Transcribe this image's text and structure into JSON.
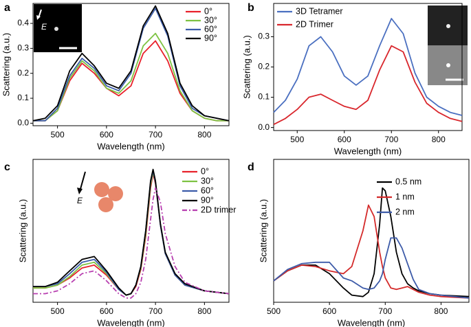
{
  "chart_data": [
    {
      "type": "line",
      "panel": "a",
      "xlabel": "Wavelength (nm)",
      "ylabel": "Scattering (a.u.)",
      "inset_label": "E",
      "x": [
        450,
        475,
        500,
        525,
        550,
        575,
        600,
        625,
        650,
        675,
        700,
        725,
        750,
        775,
        800,
        825,
        850
      ],
      "xlim": [
        450,
        850
      ],
      "xticks": [
        500,
        600,
        700,
        800
      ],
      "ylim": [
        -0.01,
        0.48
      ],
      "yticks": [
        {
          "value": 0,
          "label": "0.0"
        },
        0.1,
        0.2,
        0.3,
        0.4
      ],
      "legend": "upper right",
      "series": [
        {
          "name": "0°",
          "color": "#e8202a",
          "values": [
            0.01,
            0.01,
            0.05,
            0.17,
            0.24,
            0.2,
            0.14,
            0.11,
            0.15,
            0.28,
            0.33,
            0.25,
            0.12,
            0.05,
            0.02,
            0.01,
            0.01
          ]
        },
        {
          "name": "30°",
          "color": "#7dc242",
          "values": [
            0.01,
            0.01,
            0.05,
            0.18,
            0.25,
            0.21,
            0.14,
            0.12,
            0.17,
            0.31,
            0.36,
            0.28,
            0.13,
            0.05,
            0.02,
            0.01,
            0.01
          ]
        },
        {
          "name": "60°",
          "color": "#3b5ba9",
          "values": [
            0.01,
            0.01,
            0.06,
            0.19,
            0.26,
            0.22,
            0.15,
            0.13,
            0.2,
            0.38,
            0.46,
            0.35,
            0.15,
            0.06,
            0.03,
            0.02,
            0.01
          ]
        },
        {
          "name": "90°",
          "color": "#000000",
          "values": [
            0.01,
            0.02,
            0.07,
            0.21,
            0.28,
            0.23,
            0.16,
            0.14,
            0.21,
            0.39,
            0.47,
            0.36,
            0.16,
            0.07,
            0.03,
            0.02,
            0.01
          ]
        }
      ]
    },
    {
      "type": "line",
      "panel": "b",
      "xlabel": "Wavelength (nm)",
      "ylabel": "Scattering (a.u.)",
      "x": [
        450,
        475,
        500,
        525,
        550,
        575,
        600,
        625,
        650,
        675,
        700,
        725,
        750,
        775,
        800,
        825,
        850
      ],
      "xlim": [
        450,
        850
      ],
      "xticks": [
        500,
        600,
        700,
        800
      ],
      "ylim": [
        -0.01,
        0.41
      ],
      "yticks": [
        {
          "value": 0,
          "label": "0.0"
        },
        0.1,
        0.2,
        0.3
      ],
      "legend": "upper left",
      "series": [
        {
          "name": "3D Tetramer",
          "color": "#4a6fc0",
          "values": [
            0.05,
            0.09,
            0.16,
            0.27,
            0.3,
            0.25,
            0.17,
            0.14,
            0.17,
            0.27,
            0.36,
            0.31,
            0.18,
            0.1,
            0.07,
            0.05,
            0.04
          ]
        },
        {
          "name": "2D Trimer",
          "color": "#d9262c",
          "values": [
            0.01,
            0.03,
            0.06,
            0.1,
            0.11,
            0.09,
            0.07,
            0.06,
            0.09,
            0.19,
            0.27,
            0.25,
            0.15,
            0.08,
            0.05,
            0.03,
            0.02
          ]
        }
      ]
    },
    {
      "type": "line",
      "panel": "c",
      "xlabel": "Wavelength (nm)",
      "ylabel": "Scattering (a.u.)",
      "inset_label": "E",
      "x": [
        450,
        475,
        500,
        525,
        550,
        575,
        600,
        625,
        640,
        650,
        660,
        670,
        680,
        690,
        695,
        700,
        710,
        720,
        740,
        760,
        800,
        850
      ],
      "xlim": [
        450,
        850
      ],
      "xticks": [
        500,
        600,
        700,
        800
      ],
      "ylim": [
        0,
        1
      ],
      "legend": "upper right",
      "series": [
        {
          "name": "0°",
          "color": "#e8202a",
          "values": [
            0.1,
            0.1,
            0.12,
            0.17,
            0.24,
            0.26,
            0.19,
            0.09,
            0.05,
            0.06,
            0.11,
            0.23,
            0.46,
            0.8,
            0.9,
            0.83,
            0.54,
            0.34,
            0.19,
            0.12,
            0.08,
            0.06
          ]
        },
        {
          "name": "30°",
          "color": "#7dc242",
          "values": [
            0.1,
            0.1,
            0.12,
            0.18,
            0.26,
            0.28,
            0.2,
            0.09,
            0.05,
            0.06,
            0.12,
            0.24,
            0.48,
            0.82,
            0.91,
            0.84,
            0.54,
            0.34,
            0.19,
            0.12,
            0.08,
            0.06
          ]
        },
        {
          "name": "60°",
          "color": "#3b5ba9",
          "values": [
            0.11,
            0.11,
            0.13,
            0.2,
            0.28,
            0.3,
            0.21,
            0.09,
            0.05,
            0.06,
            0.12,
            0.25,
            0.5,
            0.84,
            0.92,
            0.84,
            0.54,
            0.34,
            0.19,
            0.12,
            0.08,
            0.06
          ]
        },
        {
          "name": "90°",
          "color": "#000000",
          "values": [
            0.11,
            0.11,
            0.14,
            0.22,
            0.3,
            0.32,
            0.22,
            0.1,
            0.05,
            0.06,
            0.12,
            0.25,
            0.5,
            0.85,
            0.93,
            0.85,
            0.55,
            0.35,
            0.2,
            0.13,
            0.08,
            0.06
          ]
        },
        {
          "name": "2D trimer",
          "color": "#b83fb0",
          "linestyle": "dashdot",
          "values": [
            0.06,
            0.06,
            0.08,
            0.13,
            0.2,
            0.22,
            0.15,
            0.06,
            0.03,
            0.03,
            0.06,
            0.14,
            0.3,
            0.58,
            0.72,
            0.8,
            0.7,
            0.48,
            0.25,
            0.14,
            0.08,
            0.06
          ]
        }
      ]
    },
    {
      "type": "line",
      "panel": "d",
      "xlabel": "Wavelength (nm)",
      "ylabel": "Scattering (a.u.)",
      "x": [
        500,
        525,
        550,
        575,
        600,
        625,
        640,
        660,
        670,
        680,
        690,
        695,
        700,
        710,
        720,
        730,
        740,
        750,
        760,
        780,
        800,
        850
      ],
      "xlim": [
        500,
        850
      ],
      "xticks": [
        500,
        600,
        700,
        800
      ],
      "ylim": [
        0,
        1
      ],
      "legend": "upper right",
      "series": [
        {
          "name": "0.5 nm",
          "color": "#000000",
          "values": [
            0.15,
            0.22,
            0.26,
            0.26,
            0.2,
            0.1,
            0.05,
            0.04,
            0.07,
            0.2,
            0.55,
            0.8,
            0.78,
            0.6,
            0.35,
            0.2,
            0.13,
            0.1,
            0.08,
            0.06,
            0.05,
            0.04
          ]
        },
        {
          "name": "1 nm",
          "color": "#d42a2a",
          "values": [
            0.15,
            0.22,
            0.26,
            0.25,
            0.22,
            0.2,
            0.25,
            0.5,
            0.68,
            0.6,
            0.35,
            0.25,
            0.17,
            0.1,
            0.09,
            0.1,
            0.11,
            0.09,
            0.07,
            0.05,
            0.04,
            0.03
          ]
        },
        {
          "name": "2 nm",
          "color": "#3c5aa8",
          "values": [
            0.15,
            0.23,
            0.27,
            0.28,
            0.28,
            0.17,
            0.15,
            0.1,
            0.09,
            0.1,
            0.15,
            0.2,
            0.3,
            0.45,
            0.45,
            0.38,
            0.27,
            0.16,
            0.09,
            0.06,
            0.05,
            0.03
          ]
        }
      ]
    }
  ]
}
